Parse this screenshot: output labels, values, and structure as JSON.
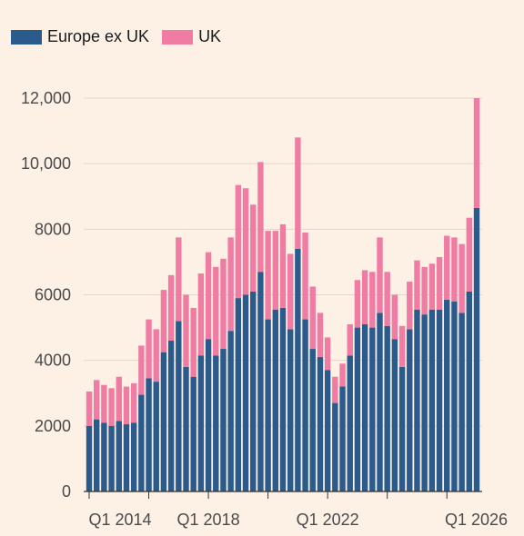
{
  "chart_data": {
    "type": "bar",
    "stacked": true,
    "legend_position": "top-left",
    "grid": true,
    "ylim": [
      0,
      12000
    ],
    "yticks": [
      0,
      2000,
      4000,
      6000,
      8000,
      10000,
      12000
    ],
    "ytick_labels": [
      "0",
      "2000",
      "4000",
      "6000",
      "8000",
      "10,000",
      "12,000"
    ],
    "xtick_labels": [
      "Q1 2014",
      "Q1 2018",
      "Q1 2022",
      "Q1 2026"
    ],
    "series": [
      {
        "name": "Europe ex UK",
        "color": "#2b5a8c",
        "values": [
          2000,
          2200,
          2100,
          2000,
          2150,
          2050,
          2100,
          2950,
          3450,
          3350,
          4250,
          4600,
          5200,
          3800,
          3500,
          4150,
          4650,
          4150,
          4350,
          4900,
          5900,
          6000,
          6100,
          6700,
          5250,
          5550,
          5600,
          4950,
          7400,
          5250,
          4350,
          4100,
          3700,
          2700,
          3200,
          4150,
          5000,
          5100,
          5000,
          5450,
          5050,
          4650,
          3800,
          4950,
          5550,
          5400,
          5550,
          5550,
          5850,
          5800,
          5450,
          6100,
          8650
        ]
      },
      {
        "name": "UK",
        "color": "#f07ca3",
        "values": [
          1050,
          1200,
          1150,
          1150,
          1350,
          1150,
          1200,
          1500,
          1800,
          1600,
          1900,
          2000,
          2550,
          2200,
          2100,
          2500,
          2650,
          2700,
          2750,
          2850,
          3450,
          3250,
          2650,
          3350,
          2700,
          2400,
          2550,
          2300,
          3400,
          2650,
          1900,
          1350,
          1000,
          800,
          700,
          950,
          1450,
          1650,
          1700,
          2300,
          1650,
          1350,
          1250,
          1450,
          1500,
          1450,
          1400,
          1600,
          1950,
          1950,
          2100,
          2250,
          3350
        ]
      }
    ]
  }
}
